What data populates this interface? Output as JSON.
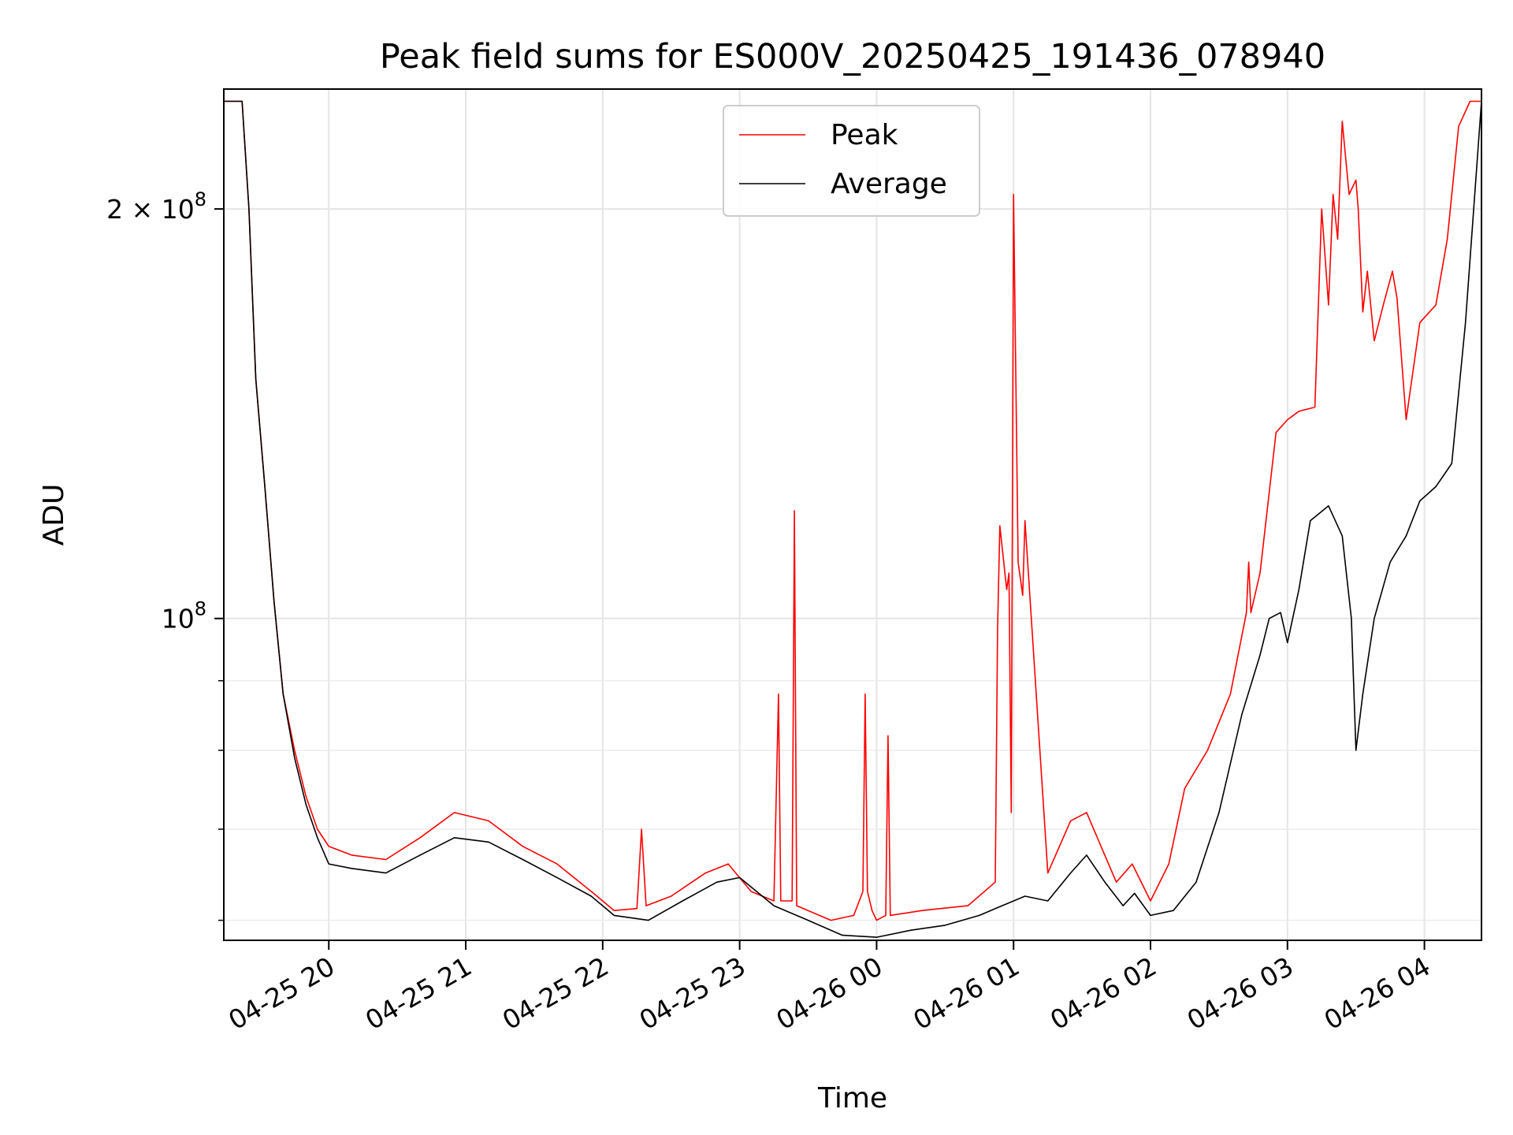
{
  "chart_data": {
    "type": "line",
    "title": "Peak field sums for ES000V_20250425_191436_078940",
    "xlabel": "Time",
    "ylabel": "ADU",
    "y_scale": "log",
    "ylim": [
      58000000,
      245000000
    ],
    "xlim": [
      "04-25 19:14",
      "04-26 04:25"
    ],
    "grid": true,
    "legend_position": "top-center",
    "x_ticks": [
      "04-25 20",
      "04-25 21",
      "04-25 22",
      "04-25 23",
      "04-26 00",
      "04-26 01",
      "04-26 02",
      "04-26 03",
      "04-26 04"
    ],
    "y_ticks": [
      {
        "value": 100000000,
        "label_base": "10",
        "label_exp": "8",
        "label_prefix": ""
      },
      {
        "value": 200000000,
        "label_base": "10",
        "label_exp": "8",
        "label_prefix": "2 × "
      }
    ],
    "series": [
      {
        "name": "Peak",
        "color": "#ff0000",
        "x": [
          "04-25 19:14",
          "04-25 19:22",
          "04-25 19:25",
          "04-25 19:28",
          "04-25 19:32",
          "04-25 19:36",
          "04-25 19:40",
          "04-25 19:45",
          "04-25 19:50",
          "04-25 19:55",
          "04-25 20:00",
          "04-25 20:10",
          "04-25 20:25",
          "04-25 20:40",
          "04-25 20:55",
          "04-25 21:10",
          "04-25 21:25",
          "04-25 21:40",
          "04-25 21:55",
          "04-25 22:05",
          "04-25 22:15",
          "04-25 22:17",
          "04-25 22:19",
          "04-25 22:30",
          "04-25 22:45",
          "04-25 22:55",
          "04-25 23:05",
          "04-25 23:15",
          "04-25 23:17",
          "04-25 23:18",
          "04-25 23:23",
          "04-25 23:24",
          "04-25 23:25",
          "04-25 23:40",
          "04-25 23:50",
          "04-25 23:54",
          "04-25 23:55",
          "04-25 23:56",
          "04-25 23:58",
          "04-26 00:00",
          "04-26 00:04",
          "04-26 00:05",
          "04-26 00:06",
          "04-26 00:20",
          "04-26 00:40",
          "04-26 00:52",
          "04-26 00:53",
          "04-26 00:54",
          "04-26 00:57",
          "04-26 00:58",
          "04-26 00:59",
          "04-26 01:00",
          "04-26 01:02",
          "04-26 01:04",
          "04-26 01:05",
          "04-26 01:15",
          "04-26 01:25",
          "04-26 01:32",
          "04-26 01:45",
          "04-26 01:52",
          "04-26 02:00",
          "04-26 02:08",
          "04-26 02:15",
          "04-26 02:25",
          "04-26 02:35",
          "04-26 02:42",
          "04-26 02:43",
          "04-26 02:44",
          "04-26 02:48",
          "04-26 02:55",
          "04-26 03:00",
          "04-26 03:05",
          "04-26 03:12",
          "04-26 03:15",
          "04-26 03:18",
          "04-26 03:20",
          "04-26 03:22",
          "04-26 03:24",
          "04-26 03:27",
          "04-26 03:30",
          "04-26 03:31",
          "04-26 03:33",
          "04-26 03:35",
          "04-26 03:38",
          "04-26 03:42",
          "04-26 03:46",
          "04-26 03:48",
          "04-26 03:52",
          "04-26 03:58",
          "04-26 04:05",
          "04-26 04:10",
          "04-26 04:15",
          "04-26 04:20",
          "04-26 04:25"
        ],
        "y": [
          240000000,
          240000000,
          200000000,
          150000000,
          125000000,
          103000000,
          88000000,
          80000000,
          74000000,
          70000000,
          68000000,
          67000000,
          66500000,
          69000000,
          72000000,
          71000000,
          68000000,
          66000000,
          63000000,
          61000000,
          61200000,
          70000000,
          61500000,
          62500000,
          65000000,
          66000000,
          63000000,
          62000000,
          88000000,
          62000000,
          62000000,
          120000000,
          61500000,
          60000000,
          60500000,
          63000000,
          88000000,
          63000000,
          61000000,
          60000000,
          60500000,
          82000000,
          60500000,
          61000000,
          61500000,
          64000000,
          98000000,
          117000000,
          105000000,
          108000000,
          72000000,
          205000000,
          110000000,
          104000000,
          118000000,
          65000000,
          71000000,
          72000000,
          64000000,
          66000000,
          62000000,
          66000000,
          75000000,
          80000000,
          88000000,
          101000000,
          110000000,
          101000000,
          108000000,
          137000000,
          140000000,
          142000000,
          143000000,
          200000000,
          170000000,
          205000000,
          190000000,
          232000000,
          205000000,
          210000000,
          200000000,
          168000000,
          180000000,
          160000000,
          170000000,
          180000000,
          172000000,
          140000000,
          165000000,
          170000000,
          190000000,
          230000000,
          240000000,
          240000000
        ]
      },
      {
        "name": "Average",
        "color": "#000000",
        "x": [
          "04-25 19:14",
          "04-25 19:22",
          "04-25 19:25",
          "04-25 19:28",
          "04-25 19:32",
          "04-25 19:36",
          "04-25 19:40",
          "04-25 19:45",
          "04-25 19:50",
          "04-25 19:55",
          "04-25 20:00",
          "04-25 20:10",
          "04-25 20:25",
          "04-25 20:40",
          "04-25 20:55",
          "04-25 21:10",
          "04-25 21:25",
          "04-25 21:40",
          "04-25 21:55",
          "04-25 22:05",
          "04-25 22:20",
          "04-25 22:35",
          "04-25 22:50",
          "04-25 23:00",
          "04-25 23:15",
          "04-25 23:30",
          "04-25 23:45",
          "04-26 00:00",
          "04-26 00:15",
          "04-26 00:30",
          "04-26 00:45",
          "04-26 00:55",
          "04-26 01:05",
          "04-26 01:15",
          "04-26 01:25",
          "04-26 01:32",
          "04-26 01:40",
          "04-26 01:48",
          "04-26 01:53",
          "04-26 02:00",
          "04-26 02:10",
          "04-26 02:20",
          "04-26 02:30",
          "04-26 02:40",
          "04-26 02:48",
          "04-26 02:52",
          "04-26 02:57",
          "04-26 03:00",
          "04-26 03:05",
          "04-26 03:10",
          "04-26 03:18",
          "04-26 03:24",
          "04-26 03:28",
          "04-26 03:30",
          "04-26 03:33",
          "04-26 03:38",
          "04-26 03:45",
          "04-26 03:52",
          "04-26 03:58",
          "04-26 04:05",
          "04-26 04:12",
          "04-26 04:18",
          "04-26 04:25"
        ],
        "y": [
          240000000,
          240000000,
          200000000,
          150000000,
          125000000,
          103000000,
          88000000,
          79000000,
          73000000,
          69000000,
          66000000,
          65500000,
          65000000,
          67000000,
          69000000,
          68500000,
          66500000,
          64500000,
          62500000,
          60500000,
          60000000,
          62000000,
          64000000,
          64500000,
          61500000,
          60000000,
          58500000,
          58300000,
          59000000,
          59500000,
          60500000,
          61500000,
          62500000,
          62000000,
          65000000,
          67000000,
          64000000,
          61500000,
          62800000,
          60500000,
          61000000,
          64000000,
          72000000,
          85000000,
          94000000,
          100000000,
          101000000,
          96000000,
          105000000,
          118000000,
          121000000,
          115000000,
          100000000,
          80000000,
          88000000,
          100000000,
          110000000,
          115000000,
          122000000,
          125000000,
          130000000,
          165000000,
          240000000
        ]
      }
    ]
  }
}
